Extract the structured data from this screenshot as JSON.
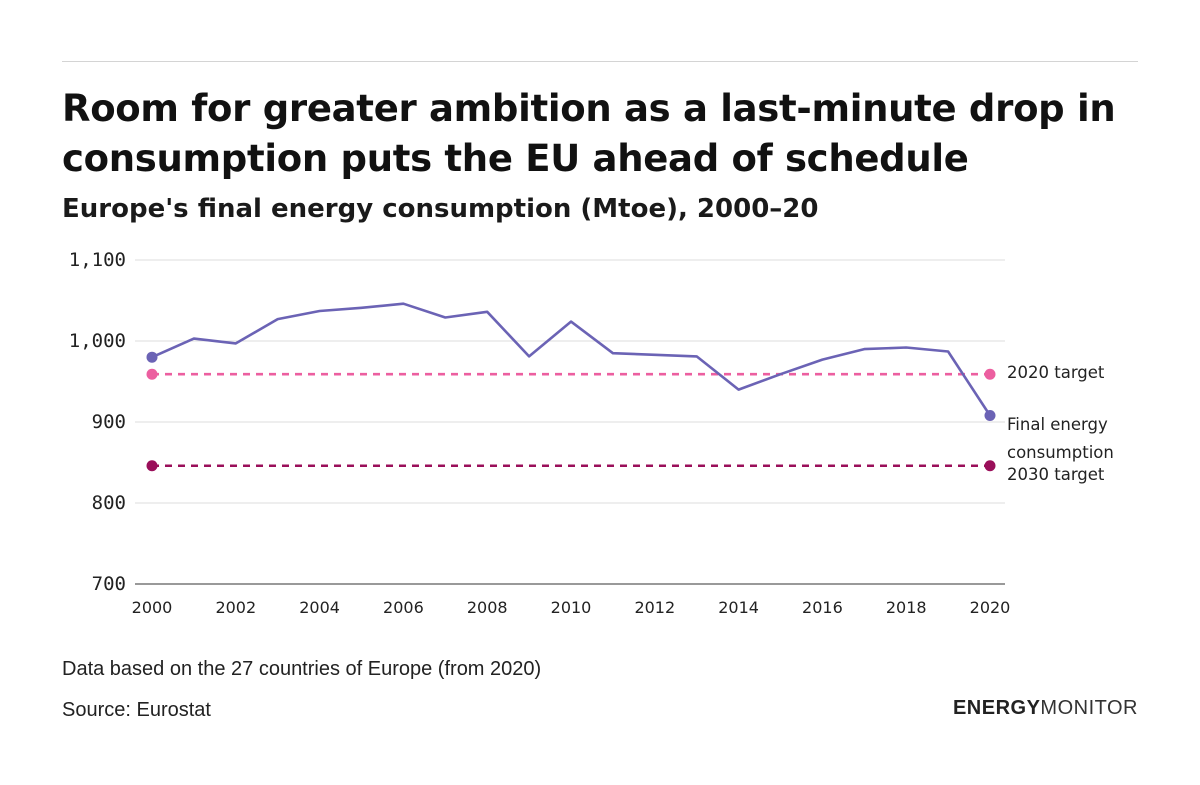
{
  "header": {
    "title": "Room for greater ambition as a last-minute drop in consumption puts the EU ahead of schedule",
    "subtitle": "Europe's final energy consumption (Mtoe), 2000–20"
  },
  "footer": {
    "note": "Data based on the 27 countries of Europe (from 2020)",
    "source": "Source: Eurostat",
    "brand_bold": "ENERGY",
    "brand_light": "MONITOR"
  },
  "colors": {
    "series": "#6b63b5",
    "target_2020": "#ec5fa0",
    "target_2030": "#9a0f5a",
    "grid": "#dddddd"
  },
  "chart_data": {
    "type": "line",
    "title": "Europe's final energy consumption (Mtoe), 2000–20",
    "xlabel": "",
    "ylabel": "Mtoe",
    "ylim": [
      700,
      1100
    ],
    "xlim": [
      2000,
      2020
    ],
    "yticks": [
      {
        "value": 1100,
        "label": "1,100"
      },
      {
        "value": 1000,
        "label": "1,000"
      },
      {
        "value": 900,
        "label": "900"
      },
      {
        "value": 800,
        "label": "800"
      },
      {
        "value": 700,
        "label": "700"
      }
    ],
    "xticks": [
      2000,
      2002,
      2004,
      2006,
      2008,
      2010,
      2012,
      2014,
      2016,
      2018,
      2020
    ],
    "series": [
      {
        "name": "Final energy consumption",
        "label_lines": [
          "Final energy",
          "consumption"
        ],
        "x": [
          2000,
          2001,
          2002,
          2003,
          2004,
          2005,
          2006,
          2007,
          2008,
          2009,
          2010,
          2011,
          2012,
          2013,
          2014,
          2015,
          2016,
          2017,
          2018,
          2019,
          2020
        ],
        "values": [
          980,
          1003,
          997,
          1027,
          1037,
          1041,
          1046,
          1029,
          1036,
          981,
          1024,
          985,
          983,
          981,
          940,
          959,
          977,
          990,
          992,
          987,
          908
        ]
      }
    ],
    "reference_lines": [
      {
        "name": "2020 target",
        "value": 959,
        "x": [
          2000,
          2020
        ]
      },
      {
        "name": "2030 target",
        "value": 846,
        "x": [
          2000,
          2020
        ]
      }
    ],
    "grid": true
  }
}
